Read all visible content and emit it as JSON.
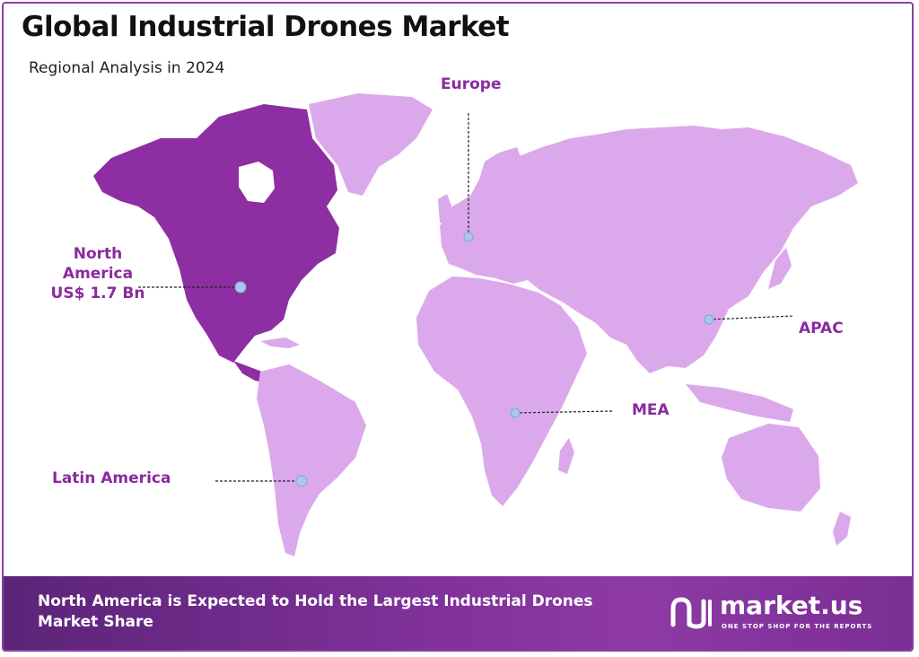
{
  "header": {
    "title": "Global Industrial Drones Market",
    "subtitle": "Regional Analysis in 2024"
  },
  "regions": {
    "north_america": {
      "line1": "North",
      "line2": "America",
      "value": "US$ 1.7 Bn",
      "color": "#8b2a9e"
    },
    "europe": {
      "name": "Europe",
      "color": "#dca8ec"
    },
    "apac": {
      "name": "APAC",
      "color": "#dca8ec"
    },
    "mea": {
      "name": "MEA",
      "color": "#dca8ec"
    },
    "latin_america": {
      "name": "Latin America",
      "color": "#dca8ec"
    }
  },
  "footer": {
    "text": "North America is Expected to Hold the Largest Industrial Drones Market Share",
    "brand_name": "market.us",
    "brand_tagline": "ONE STOP SHOP FOR THE REPORTS"
  },
  "colors": {
    "accent": "#8b2a9e",
    "land_highlight": "#8e2ea3",
    "land_other": "#dca8ec",
    "marker": "#a9c8ee",
    "footer": "#7b2f95"
  },
  "icons": [
    "market-us-logo-icon",
    "region-marker-icon"
  ]
}
